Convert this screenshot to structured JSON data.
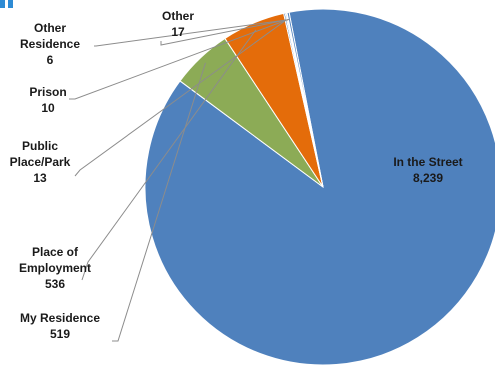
{
  "chart_data": {
    "type": "pie",
    "slices": [
      {
        "label_lines": [
          "In the Street"
        ],
        "value_text": "8,239",
        "value": 8239,
        "color": "#4f81bd"
      },
      {
        "label_lines": [
          "My Residence"
        ],
        "value_text": "519",
        "value": 519,
        "color": "#8cab56"
      },
      {
        "label_lines": [
          "Place of",
          "Employment"
        ],
        "value_text": "536",
        "value": 536,
        "color": "#e46c0a"
      },
      {
        "label_lines": [
          "Public",
          "Place/Park"
        ],
        "value_text": "13",
        "value": 13,
        "color": "#4f81bd"
      },
      {
        "label_lines": [
          "Prison"
        ],
        "value_text": "10",
        "value": 10,
        "color": "#4f81bd"
      },
      {
        "label_lines": [
          "Other",
          "Residence"
        ],
        "value_text": "6",
        "value": 6,
        "color": "#4f81bd"
      },
      {
        "label_lines": [
          "Other"
        ],
        "value_text": "17",
        "value": 17,
        "color": "#4f81bd"
      }
    ],
    "accent_color": "#2e8bd4"
  }
}
